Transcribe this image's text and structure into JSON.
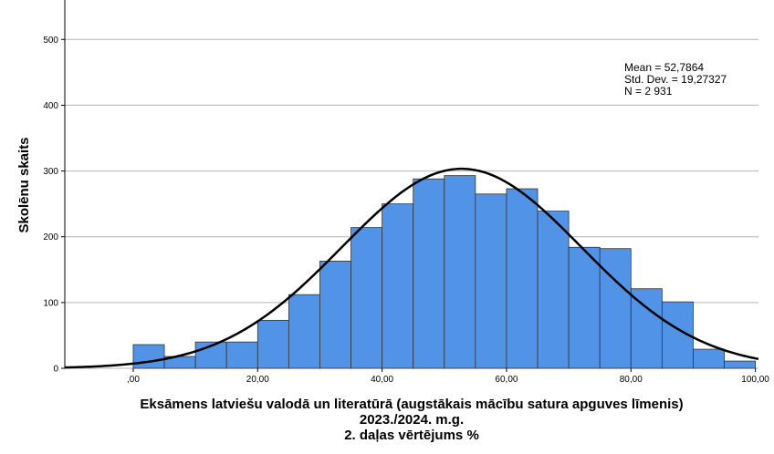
{
  "chart_data": {
    "type": "histogram",
    "title": "",
    "xlabel_lines": [
      "Eksāmens latviešu valodā un literatūrā (augstākais mācību satura apguves līmenis)",
      "2023./2024. m.g.",
      "2. daļas vērtējums %"
    ],
    "ylabel": "Skolēnu skaits",
    "x_ticks": [
      0,
      20,
      40,
      60,
      80,
      100
    ],
    "x_tick_labels": [
      ",00",
      "20,00",
      "40,00",
      "60,00",
      "80,00",
      "100,00"
    ],
    "y_ticks": [
      0,
      100,
      200,
      300,
      400,
      500
    ],
    "y_tick_labels": [
      "0",
      "100",
      "200",
      "300",
      "400",
      "500"
    ],
    "xlim": [
      -11,
      100.5
    ],
    "ylim": [
      0,
      560
    ],
    "bin_width": 5,
    "bins": [
      {
        "start": 0,
        "end": 5,
        "count": 36
      },
      {
        "start": 5,
        "end": 10,
        "count": 18
      },
      {
        "start": 10,
        "end": 15,
        "count": 40
      },
      {
        "start": 15,
        "end": 20,
        "count": 40
      },
      {
        "start": 20,
        "end": 25,
        "count": 73
      },
      {
        "start": 25,
        "end": 30,
        "count": 112
      },
      {
        "start": 30,
        "end": 35,
        "count": 163
      },
      {
        "start": 35,
        "end": 40,
        "count": 214
      },
      {
        "start": 40,
        "end": 45,
        "count": 250
      },
      {
        "start": 45,
        "end": 50,
        "count": 288
      },
      {
        "start": 50,
        "end": 55,
        "count": 293
      },
      {
        "start": 55,
        "end": 60,
        "count": 265
      },
      {
        "start": 60,
        "end": 65,
        "count": 273
      },
      {
        "start": 65,
        "end": 70,
        "count": 239
      },
      {
        "start": 70,
        "end": 75,
        "count": 184
      },
      {
        "start": 75,
        "end": 80,
        "count": 182
      },
      {
        "start": 80,
        "end": 85,
        "count": 121
      },
      {
        "start": 85,
        "end": 90,
        "count": 101
      },
      {
        "start": 90,
        "end": 95,
        "count": 29
      },
      {
        "start": 95,
        "end": 100,
        "count": 11
      }
    ],
    "normal_curve": {
      "mean": 52.7864,
      "sd": 19.27327,
      "n": 2931
    },
    "stats_lines": [
      "Mean = 52,7864",
      "Std. Dev. = 19,27327",
      "N = 2 931"
    ],
    "grid": "horizontal",
    "colors": {
      "bar_fill": "#5193e7",
      "bar_stroke": "#333333",
      "curve": "#000000",
      "grid": "#b4b4b4"
    }
  }
}
